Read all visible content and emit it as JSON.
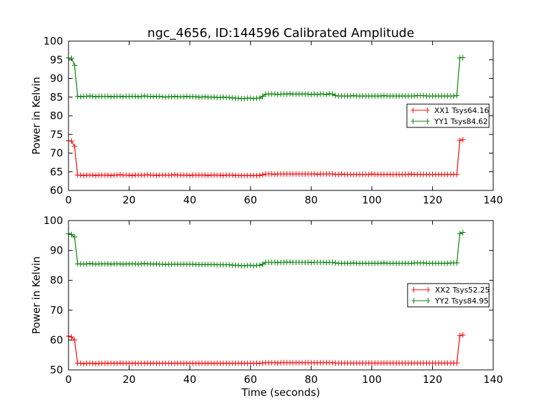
{
  "chart_data": [
    {
      "type": "line",
      "title": "ngc_4656, ID:144596 Calibrated Amplitude",
      "xlabel": "",
      "ylabel": "Power in Kelvin",
      "xlim": [
        0,
        140
      ],
      "ylim": [
        60,
        100
      ],
      "xticks": [
        0,
        20,
        40,
        60,
        80,
        100,
        120,
        140
      ],
      "yticks": [
        60,
        65,
        70,
        75,
        80,
        85,
        90,
        95,
        100
      ],
      "legend_position": "center-right",
      "series": [
        {
          "name": "XX1 Tsys64.16",
          "color": "#ff0000",
          "values": [
            73.3,
            73.2,
            71.8,
            64.1,
            64.1,
            64.0,
            64.1,
            64.1,
            64.1,
            64.0,
            64.1,
            64.1,
            64.1,
            64.1,
            64.0,
            64.1,
            64.1,
            64.2,
            64.1,
            64.1,
            64.1,
            64.0,
            64.1,
            64.1,
            64.1,
            64.1,
            64.2,
            64.1,
            64.1,
            64.0,
            64.1,
            64.1,
            64.1,
            64.1,
            64.1,
            64.2,
            64.1,
            64.1,
            64.1,
            64.1,
            64.0,
            64.1,
            64.1,
            64.1,
            64.1,
            64.1,
            64.0,
            64.1,
            64.1,
            64.1,
            64.1,
            64.0,
            64.1,
            64.1,
            64.1,
            64.0,
            64.0,
            64.0,
            64.0,
            64.0,
            64.0,
            64.0,
            64.0,
            64.0,
            64.2,
            64.4,
            64.4,
            64.4,
            64.3,
            64.4,
            64.4,
            64.4,
            64.4,
            64.4,
            64.4,
            64.4,
            64.4,
            64.4,
            64.4,
            64.4,
            64.4,
            64.4,
            64.3,
            64.4,
            64.4,
            64.4,
            64.4,
            64.4,
            64.3,
            64.3,
            64.4,
            64.3,
            64.3,
            64.3,
            64.3,
            64.3,
            64.3,
            64.3,
            64.3,
            64.3,
            64.4,
            64.3,
            64.3,
            64.3,
            64.3,
            64.3,
            64.3,
            64.3,
            64.3,
            64.3,
            64.3,
            64.3,
            64.3,
            64.4,
            64.3,
            64.3,
            64.3,
            64.3,
            64.3,
            64.3,
            64.3,
            64.3,
            64.3,
            64.3,
            64.3,
            64.3,
            64.3,
            64.3,
            64.3,
            73.4,
            73.6
          ]
        },
        {
          "name": "YY1 Tsys84.62",
          "color": "#008000",
          "values": [
            95.5,
            95.4,
            93.5,
            85.2,
            85.1,
            85.2,
            85.2,
            85.3,
            85.2,
            85.1,
            85.2,
            85.2,
            85.2,
            85.2,
            85.1,
            85.2,
            85.2,
            85.2,
            85.1,
            85.2,
            85.2,
            85.2,
            85.2,
            85.1,
            85.2,
            85.3,
            85.2,
            85.2,
            85.1,
            85.2,
            85.2,
            85.1,
            85.0,
            85.1,
            85.1,
            85.2,
            85.1,
            85.1,
            85.1,
            85.2,
            85.1,
            85.1,
            85.1,
            85.0,
            85.0,
            85.1,
            85.0,
            85.0,
            85.0,
            84.9,
            84.9,
            85.0,
            84.9,
            84.9,
            84.8,
            84.7,
            84.7,
            84.6,
            84.6,
            84.7,
            84.7,
            84.6,
            84.7,
            84.7,
            85.2,
            85.8,
            85.8,
            85.8,
            85.8,
            85.7,
            85.8,
            85.8,
            85.8,
            85.9,
            85.8,
            85.8,
            85.8,
            85.8,
            85.8,
            85.8,
            85.7,
            85.8,
            85.7,
            85.8,
            85.8,
            85.7,
            85.9,
            85.8,
            85.4,
            85.3,
            85.3,
            85.3,
            85.3,
            85.3,
            85.4,
            85.3,
            85.3,
            85.3,
            85.3,
            85.3,
            85.3,
            85.3,
            85.3,
            85.3,
            85.4,
            85.3,
            85.3,
            85.3,
            85.3,
            85.3,
            85.3,
            85.3,
            85.3,
            85.3,
            85.3,
            85.4,
            85.4,
            85.4,
            85.3,
            85.3,
            85.3,
            85.3,
            85.3,
            85.3,
            85.3,
            85.3,
            85.3,
            85.3,
            85.4,
            95.5,
            95.6
          ]
        }
      ]
    },
    {
      "type": "line",
      "title": "",
      "xlabel": "Time (seconds)",
      "ylabel": "Power in Kelvin",
      "xlim": [
        0,
        140
      ],
      "ylim": [
        50,
        100
      ],
      "xticks": [
        0,
        20,
        40,
        60,
        80,
        100,
        120,
        140
      ],
      "yticks": [
        50,
        60,
        70,
        80,
        90,
        100
      ],
      "legend_position": "center-right",
      "series": [
        {
          "name": "XX2 Tsys52.25",
          "color": "#ff0000",
          "values": [
            61.3,
            61.0,
            60.0,
            52.2,
            52.2,
            52.1,
            52.2,
            52.2,
            52.2,
            52.1,
            52.2,
            52.2,
            52.2,
            52.2,
            52.2,
            52.2,
            52.2,
            52.3,
            52.2,
            52.2,
            52.2,
            52.2,
            52.2,
            52.2,
            52.2,
            52.2,
            52.3,
            52.2,
            52.2,
            52.2,
            52.2,
            52.2,
            52.2,
            52.2,
            52.2,
            52.2,
            52.2,
            52.2,
            52.2,
            52.2,
            52.2,
            52.2,
            52.2,
            52.2,
            52.2,
            52.2,
            52.2,
            52.2,
            52.2,
            52.2,
            52.2,
            52.2,
            52.2,
            52.2,
            52.2,
            52.2,
            52.2,
            52.2,
            52.2,
            52.2,
            52.2,
            52.2,
            52.2,
            52.2,
            52.3,
            52.4,
            52.4,
            52.4,
            52.4,
            52.3,
            52.4,
            52.4,
            52.4,
            52.4,
            52.4,
            52.4,
            52.4,
            52.4,
            52.4,
            52.4,
            52.4,
            52.4,
            52.4,
            52.4,
            52.4,
            52.4,
            52.4,
            52.4,
            52.3,
            52.3,
            52.3,
            52.3,
            52.3,
            52.3,
            52.3,
            52.3,
            52.3,
            52.3,
            52.3,
            52.3,
            52.3,
            52.3,
            52.3,
            52.3,
            52.3,
            52.3,
            52.3,
            52.3,
            52.3,
            52.3,
            52.3,
            52.3,
            52.3,
            52.3,
            52.3,
            52.3,
            52.3,
            52.3,
            52.3,
            52.3,
            52.3,
            52.3,
            52.3,
            52.3,
            52.3,
            52.3,
            52.3,
            52.3,
            52.3,
            61.5,
            61.7
          ]
        },
        {
          "name": "YY2 Tsys84.95",
          "color": "#008000",
          "values": [
            95.6,
            95.3,
            94.5,
            85.5,
            85.5,
            85.4,
            85.5,
            85.6,
            85.5,
            85.4,
            85.5,
            85.5,
            85.5,
            85.5,
            85.4,
            85.5,
            85.5,
            85.5,
            85.4,
            85.5,
            85.5,
            85.5,
            85.5,
            85.4,
            85.5,
            85.6,
            85.5,
            85.5,
            85.4,
            85.5,
            85.4,
            85.4,
            85.3,
            85.4,
            85.4,
            85.4,
            85.4,
            85.4,
            85.4,
            85.4,
            85.4,
            85.4,
            85.3,
            85.3,
            85.3,
            85.3,
            85.3,
            85.3,
            85.3,
            85.2,
            85.2,
            85.2,
            85.2,
            85.2,
            85.1,
            85.0,
            85.0,
            84.9,
            84.9,
            85.0,
            85.0,
            84.9,
            85.0,
            85.0,
            85.4,
            86.0,
            86.0,
            86.0,
            86.0,
            85.9,
            86.0,
            86.0,
            86.1,
            86.1,
            86.0,
            86.0,
            86.0,
            86.0,
            86.0,
            86.0,
            85.9,
            86.0,
            86.0,
            86.0,
            86.0,
            85.9,
            86.0,
            86.0,
            85.8,
            85.7,
            85.7,
            85.7,
            85.7,
            85.7,
            85.8,
            85.7,
            85.7,
            85.7,
            85.7,
            85.7,
            85.7,
            85.7,
            85.7,
            85.7,
            85.8,
            85.7,
            85.7,
            85.7,
            85.7,
            85.7,
            85.7,
            85.7,
            85.7,
            85.7,
            85.8,
            85.8,
            85.8,
            85.8,
            85.7,
            85.7,
            85.7,
            85.7,
            85.7,
            85.7,
            85.7,
            85.7,
            85.8,
            85.8,
            85.8,
            95.6,
            96.0
          ]
        }
      ]
    }
  ]
}
